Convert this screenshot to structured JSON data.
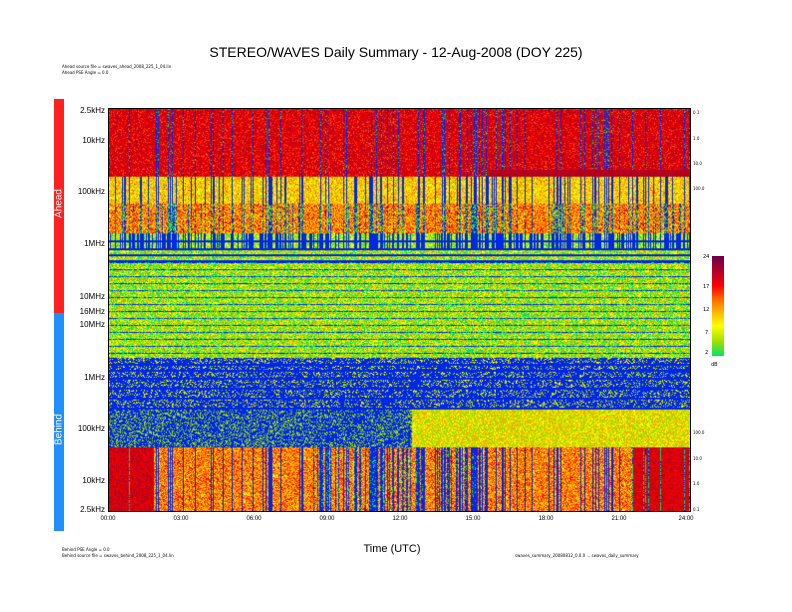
{
  "chart_data": {
    "type": "heatmap",
    "title": "STEREO/WAVES Daily Summary - 12-Aug-2008 (DOY 225)",
    "xlabel": "Time (UTC)",
    "x_ticks": [
      "00:00",
      "03:00",
      "06:00",
      "09:00",
      "12:00",
      "15:00",
      "18:00",
      "21:00",
      "24:00"
    ],
    "xlim_hours": [
      0,
      24
    ],
    "ahead": {
      "label": "Ahead",
      "color": "#ff2020",
      "y_ticks": [
        "2.5kHz",
        "10kHz",
        "100kHz",
        "1MHz",
        "10MHz",
        "16MHz"
      ],
      "y_ticks_log10_hz": [
        3.398,
        4,
        5,
        6,
        7,
        7.204
      ],
      "right_ticks": [
        "0.1",
        "1.0",
        "10.0",
        "100.0"
      ],
      "source_file": "Ahead source file = swaves_ahead_2008_225_1_04.lin",
      "pse_angle": "Ahead PSE Angle = 0.0"
    },
    "behind": {
      "label": "Behind",
      "color": "#2090ff",
      "y_ticks": [
        "10MHz",
        "1MHz",
        "100kHz",
        "10kHz",
        "2.5kHz"
      ],
      "y_ticks_log10_hz": [
        7,
        6,
        5,
        4,
        3.398
      ],
      "right_ticks": [
        "100.0",
        "10.0",
        "1.0",
        "0.1"
      ],
      "source_file": "Behind source file = swaves_behind_2008_225_1_04.lin",
      "pse_angle": "Behind PSE Angle = 0.0"
    },
    "colorbar": {
      "ticks": [
        "24",
        "17",
        "12",
        "7",
        "2"
      ],
      "values": [
        24,
        17,
        12,
        7,
        2
      ],
      "unit": "dB",
      "colors": [
        "#00e36b",
        "#9be000",
        "#ffff00",
        "#ffb000",
        "#ff6000",
        "#ff0000",
        "#c00020",
        "#6a004a"
      ]
    },
    "footer": "swaves_summary_20080812_0.0.0 ... swaves_daily_summary"
  }
}
